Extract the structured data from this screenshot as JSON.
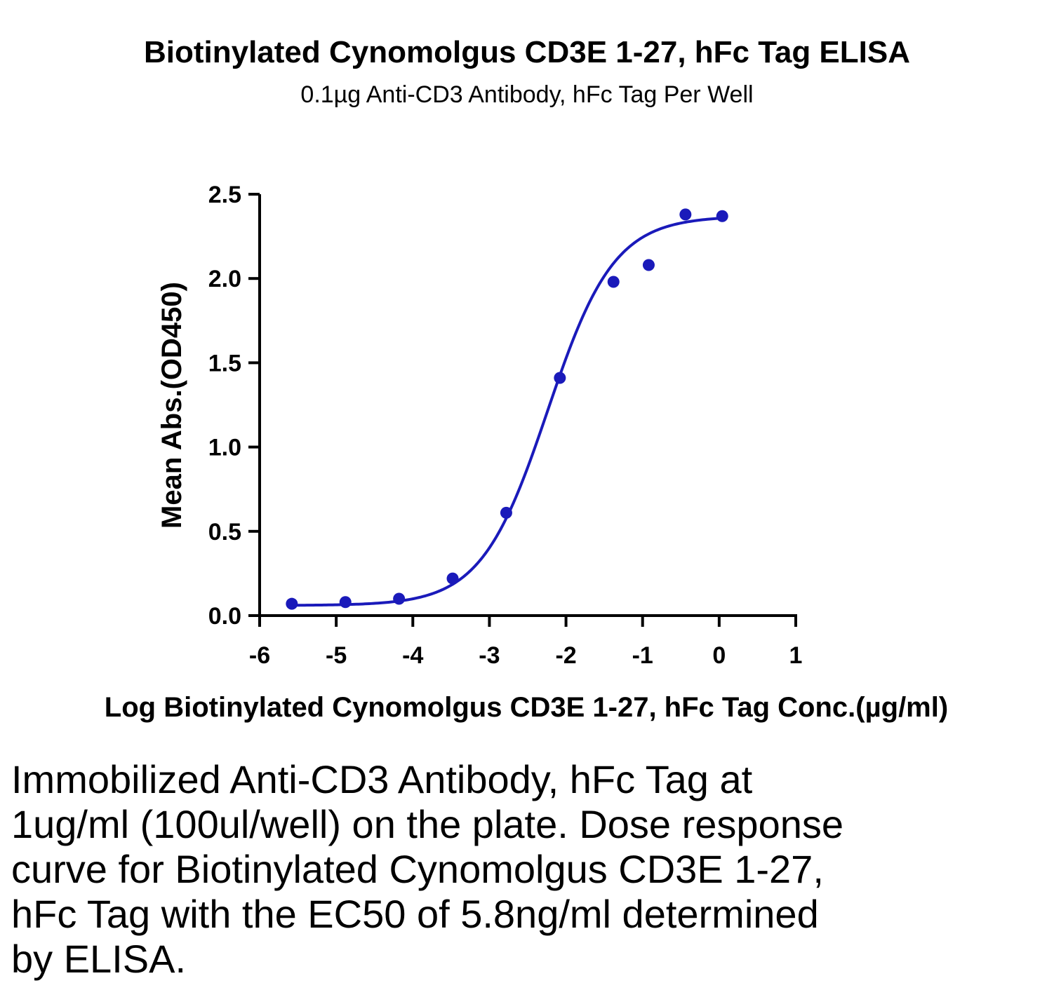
{
  "chart_data": {
    "type": "scatter",
    "title": "Biotinylated Cynomolgus CD3E 1-27, hFc Tag ELISA",
    "subtitle": "0.1µg Anti-CD3 Antibody, hFc Tag Per Well",
    "xlabel": "Log Biotinylated Cynomolgus CD3E 1-27, hFc Tag Conc.(µg/ml)",
    "ylabel": "Mean Abs.(OD450)",
    "xlim": [
      -6,
      1
    ],
    "ylim": [
      0,
      2.5
    ],
    "xticks": [
      "-6",
      "-5",
      "-4",
      "-3",
      "-2",
      "-1",
      "0",
      "1"
    ],
    "yticks": [
      "0.0",
      "0.5",
      "1.0",
      "1.5",
      "2.0",
      "2.5"
    ],
    "grid": false,
    "color": "#1a1aba",
    "points": [
      {
        "x": -5.58,
        "y": 0.07
      },
      {
        "x": -4.88,
        "y": 0.08
      },
      {
        "x": -4.18,
        "y": 0.1
      },
      {
        "x": -3.48,
        "y": 0.22
      },
      {
        "x": -2.78,
        "y": 0.61
      },
      {
        "x": -2.08,
        "y": 1.41
      },
      {
        "x": -1.38,
        "y": 1.98
      },
      {
        "x": -0.92,
        "y": 2.08
      },
      {
        "x": -0.44,
        "y": 2.38
      },
      {
        "x": 0.04,
        "y": 2.37
      }
    ],
    "fit": {
      "bottom": 0.06,
      "top": 2.37,
      "logEC50": -2.24,
      "hill": 1.0
    }
  },
  "caption": "Immobilized Anti-CD3 Antibody, hFc Tag at 1ug/ml (100ul/well) on the plate. Dose response curve for Biotinylated Cynomolgus CD3E 1-27, hFc Tag with the EC50 of 5.8ng/ml determined by ELISA."
}
